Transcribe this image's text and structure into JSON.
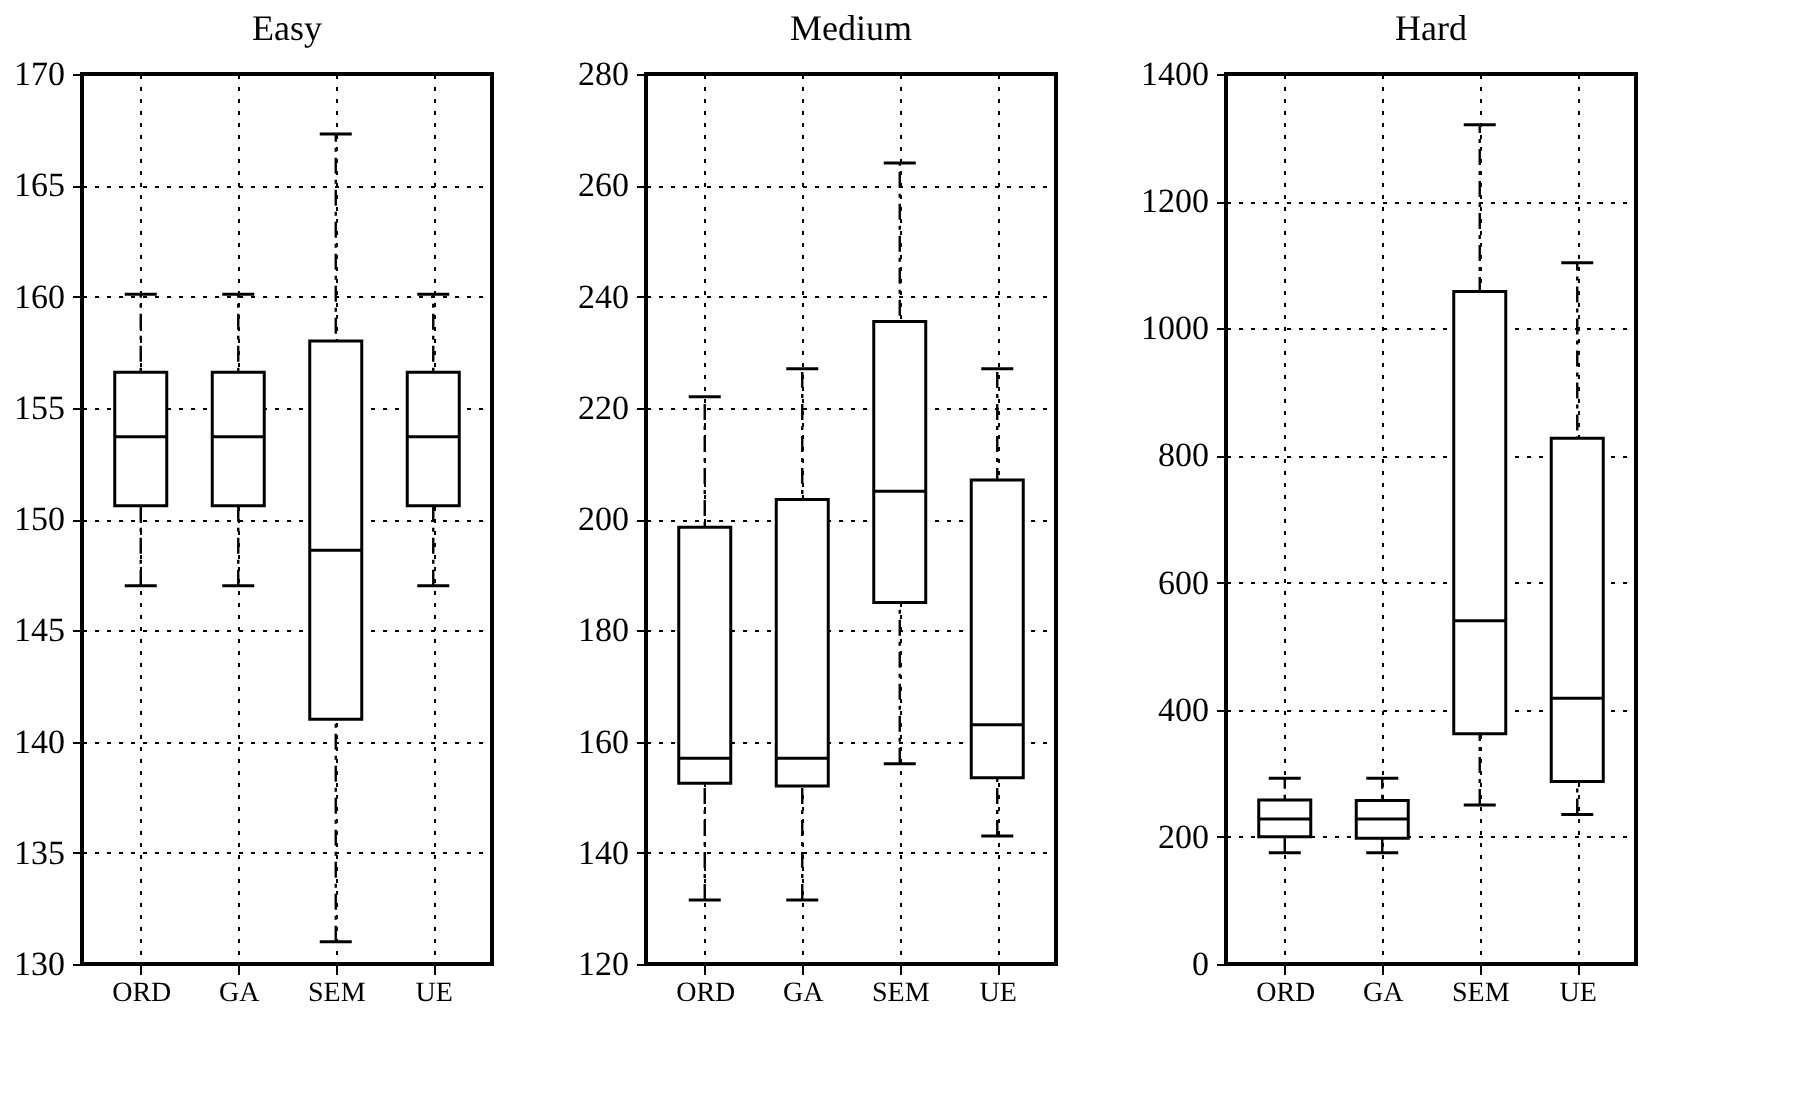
{
  "chart_data": [
    {
      "type": "box",
      "title": "Easy",
      "categories": [
        "ORD",
        "GA",
        "SEM",
        "UE"
      ],
      "ylim": [
        130,
        170
      ],
      "yticks": [
        130,
        135,
        140,
        145,
        150,
        155,
        160,
        165,
        170
      ],
      "grid": true,
      "boxes": [
        {
          "low": 147,
          "q1": 150.6,
          "median": 153.7,
          "q3": 156.6,
          "high": 160.1
        },
        {
          "low": 147,
          "q1": 150.6,
          "median": 153.7,
          "q3": 156.6,
          "high": 160.1
        },
        {
          "low": 131,
          "q1": 141,
          "median": 148.6,
          "q3": 158,
          "high": 167.3
        },
        {
          "low": 147,
          "q1": 150.6,
          "median": 153.7,
          "q3": 156.6,
          "high": 160.1
        }
      ]
    },
    {
      "type": "box",
      "title": "Medium",
      "categories": [
        "ORD",
        "GA",
        "SEM",
        "UE"
      ],
      "ylim": [
        120,
        280
      ],
      "yticks": [
        120,
        140,
        160,
        180,
        200,
        220,
        240,
        260,
        280
      ],
      "grid": true,
      "boxes": [
        {
          "low": 131.5,
          "q1": 152.5,
          "median": 157,
          "q3": 198.5,
          "high": 222
        },
        {
          "low": 131.5,
          "q1": 152,
          "median": 157,
          "q3": 203.5,
          "high": 227
        },
        {
          "low": 156,
          "q1": 185,
          "median": 205,
          "q3": 235.5,
          "high": 264
        },
        {
          "low": 143,
          "q1": 153.5,
          "median": 163,
          "q3": 207,
          "high": 227
        }
      ]
    },
    {
      "type": "box",
      "title": "Hard",
      "categories": [
        "ORD",
        "GA",
        "SEM",
        "UE"
      ],
      "ylim": [
        0,
        1400
      ],
      "yticks": [
        0,
        200,
        400,
        600,
        800,
        1000,
        1200,
        1400
      ],
      "grid": true,
      "boxes": [
        {
          "low": 175,
          "q1": 200,
          "median": 228,
          "q3": 258,
          "high": 292
        },
        {
          "low": 175,
          "q1": 198,
          "median": 228,
          "q3": 257,
          "high": 292
        },
        {
          "low": 250,
          "q1": 362,
          "median": 540,
          "q3": 1058,
          "high": 1320
        },
        {
          "low": 235,
          "q1": 287,
          "median": 418,
          "q3": 827,
          "high": 1103
        }
      ]
    }
  ]
}
